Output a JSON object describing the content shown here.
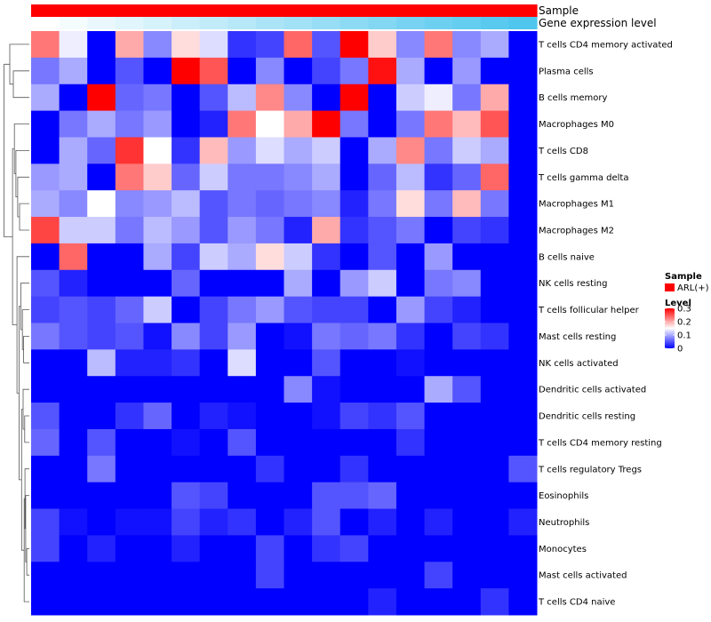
{
  "chart_data": {
    "type": "heatmap",
    "annotation_rows": [
      {
        "label": "Sample",
        "kind": "constant",
        "color": "#ff0000"
      },
      {
        "label": "Gene expression level",
        "kind": "gradient",
        "from_color": "#ffffff",
        "to_color": "#4fc6ee"
      }
    ],
    "rows": [
      "T cells CD4 memory activated",
      "Plasma cells",
      "B cells memory",
      "Macrophages M0",
      "T cells CD8",
      "T cells gamma delta",
      "Macrophages M1",
      "Macrophages M2",
      "B cells naive",
      "NK cells resting",
      "T cells follicular helper",
      "Mast cells resting",
      "NK cells activated",
      "Dendritic cells activated",
      "Dendritic cells resting",
      "T cells CD4 memory resting",
      "T cells regulatory  Tregs",
      "Eosinophils",
      "Neutrophils",
      "Monocytes",
      "Mast cells activated",
      "T cells CD4 naive"
    ],
    "n_columns": 18,
    "values": [
      [
        0.23,
        0.14,
        0.0,
        0.2,
        0.08,
        0.17,
        0.13,
        0.03,
        0.04,
        0.24,
        0.05,
        0.3,
        0.18,
        0.08,
        0.23,
        0.08,
        0.1,
        0.0
      ],
      [
        0.07,
        0.1,
        0.0,
        0.05,
        0.0,
        0.3,
        0.25,
        0.0,
        0.08,
        0.0,
        0.04,
        0.07,
        0.29,
        0.1,
        0.0,
        0.09,
        0.0,
        0.0
      ],
      [
        0.1,
        0.0,
        0.3,
        0.06,
        0.07,
        0.0,
        0.05,
        0.11,
        0.22,
        0.08,
        0.0,
        0.3,
        0.0,
        0.12,
        0.14,
        0.07,
        0.2,
        0.0
      ],
      [
        0.0,
        0.07,
        0.1,
        0.07,
        0.09,
        0.0,
        0.02,
        0.23,
        0.15,
        0.2,
        0.3,
        0.07,
        0.0,
        0.07,
        0.23,
        0.19,
        0.25,
        0.0
      ],
      [
        0.0,
        0.1,
        0.06,
        0.27,
        0.15,
        0.03,
        0.19,
        0.09,
        0.13,
        0.1,
        0.12,
        0.0,
        0.1,
        0.22,
        0.07,
        0.12,
        0.1,
        0.0
      ],
      [
        0.09,
        0.1,
        0.0,
        0.23,
        0.18,
        0.06,
        0.12,
        0.07,
        0.07,
        0.08,
        0.1,
        0.0,
        0.06,
        0.11,
        0.03,
        0.06,
        0.24,
        0.0
      ],
      [
        0.1,
        0.08,
        0.15,
        0.08,
        0.09,
        0.11,
        0.05,
        0.07,
        0.06,
        0.07,
        0.08,
        0.02,
        0.07,
        0.17,
        0.07,
        0.19,
        0.07,
        0.0
      ],
      [
        0.26,
        0.12,
        0.12,
        0.07,
        0.11,
        0.09,
        0.05,
        0.09,
        0.07,
        0.02,
        0.2,
        0.03,
        0.05,
        0.07,
        0.0,
        0.04,
        0.03,
        0.0
      ],
      [
        0.0,
        0.24,
        0.0,
        0.0,
        0.1,
        0.04,
        0.12,
        0.1,
        0.17,
        0.12,
        0.03,
        0.0,
        0.05,
        0.0,
        0.09,
        0.0,
        0.0,
        0.0
      ],
      [
        0.05,
        0.02,
        0.0,
        0.0,
        0.0,
        0.06,
        0.0,
        0.0,
        0.0,
        0.1,
        0.0,
        0.09,
        0.12,
        0.0,
        0.07,
        0.08,
        0.0,
        0.0
      ],
      [
        0.04,
        0.05,
        0.04,
        0.06,
        0.12,
        0.0,
        0.04,
        0.07,
        0.09,
        0.05,
        0.04,
        0.04,
        0.0,
        0.09,
        0.04,
        0.02,
        0.0,
        0.0
      ],
      [
        0.07,
        0.05,
        0.04,
        0.05,
        0.01,
        0.08,
        0.04,
        0.09,
        0.0,
        0.01,
        0.07,
        0.06,
        0.07,
        0.03,
        0.0,
        0.04,
        0.03,
        0.0
      ],
      [
        0.0,
        0.0,
        0.11,
        0.02,
        0.02,
        0.03,
        0.0,
        0.13,
        0.0,
        0.0,
        0.05,
        0.0,
        0.0,
        0.01,
        0.0,
        0.0,
        0.0,
        0.0
      ],
      [
        0.0,
        0.0,
        0.0,
        0.0,
        0.0,
        0.0,
        0.0,
        0.0,
        0.0,
        0.08,
        0.01,
        0.0,
        0.0,
        0.0,
        0.1,
        0.05,
        0.0,
        0.0
      ],
      [
        0.05,
        0.0,
        0.0,
        0.03,
        0.06,
        0.0,
        0.02,
        0.01,
        0.0,
        0.0,
        0.01,
        0.04,
        0.03,
        0.05,
        0.0,
        0.0,
        0.0,
        0.0
      ],
      [
        0.06,
        0.0,
        0.05,
        0.0,
        0.0,
        0.01,
        0.0,
        0.05,
        0.0,
        0.0,
        0.0,
        0.0,
        0.0,
        0.03,
        0.0,
        0.0,
        0.0,
        0.0
      ],
      [
        0.0,
        0.0,
        0.07,
        0.0,
        0.0,
        0.0,
        0.0,
        0.0,
        0.03,
        0.0,
        0.0,
        0.03,
        0.0,
        0.0,
        0.0,
        0.0,
        0.0,
        0.05
      ],
      [
        0.0,
        0.0,
        0.0,
        0.0,
        0.0,
        0.05,
        0.04,
        0.0,
        0.0,
        0.0,
        0.05,
        0.05,
        0.06,
        0.0,
        0.0,
        0.0,
        0.0,
        0.0
      ],
      [
        0.04,
        0.01,
        0.0,
        0.01,
        0.01,
        0.04,
        0.02,
        0.03,
        0.0,
        0.02,
        0.05,
        0.0,
        0.02,
        0.0,
        0.02,
        0.0,
        0.0,
        0.02
      ],
      [
        0.04,
        0.0,
        0.02,
        0.0,
        0.0,
        0.02,
        0.0,
        0.0,
        0.04,
        0.0,
        0.03,
        0.04,
        0.0,
        0.0,
        0.0,
        0.0,
        0.0,
        0.0
      ],
      [
        0.0,
        0.0,
        0.0,
        0.0,
        0.0,
        0.0,
        0.0,
        0.0,
        0.04,
        0.0,
        0.0,
        0.0,
        0.0,
        0.0,
        0.04,
        0.0,
        0.0,
        0.0
      ],
      [
        0.0,
        0.0,
        0.0,
        0.0,
        0.0,
        0.0,
        0.0,
        0.0,
        0.0,
        0.0,
        0.0,
        0.0,
        0.02,
        0.0,
        0.0,
        0.0,
        0.03,
        0.0
      ]
    ],
    "color_scale": {
      "min": 0,
      "mid": 0.15,
      "max": 0.3,
      "low_color": "#0000ff",
      "mid_color": "#ffffff",
      "high_color": "#ff0000"
    },
    "legends": [
      {
        "title": "Sample",
        "entries": [
          {
            "label": "ARL(+)",
            "color": "#ff0000"
          }
        ]
      },
      {
        "title": "Level",
        "ticks": [
          "0.3",
          "0.2",
          "0.1",
          "0"
        ],
        "tick_values": [
          0.3,
          0.2,
          0.1,
          0
        ]
      }
    ],
    "row_dendrogram": true,
    "column_dendrogram": false
  }
}
